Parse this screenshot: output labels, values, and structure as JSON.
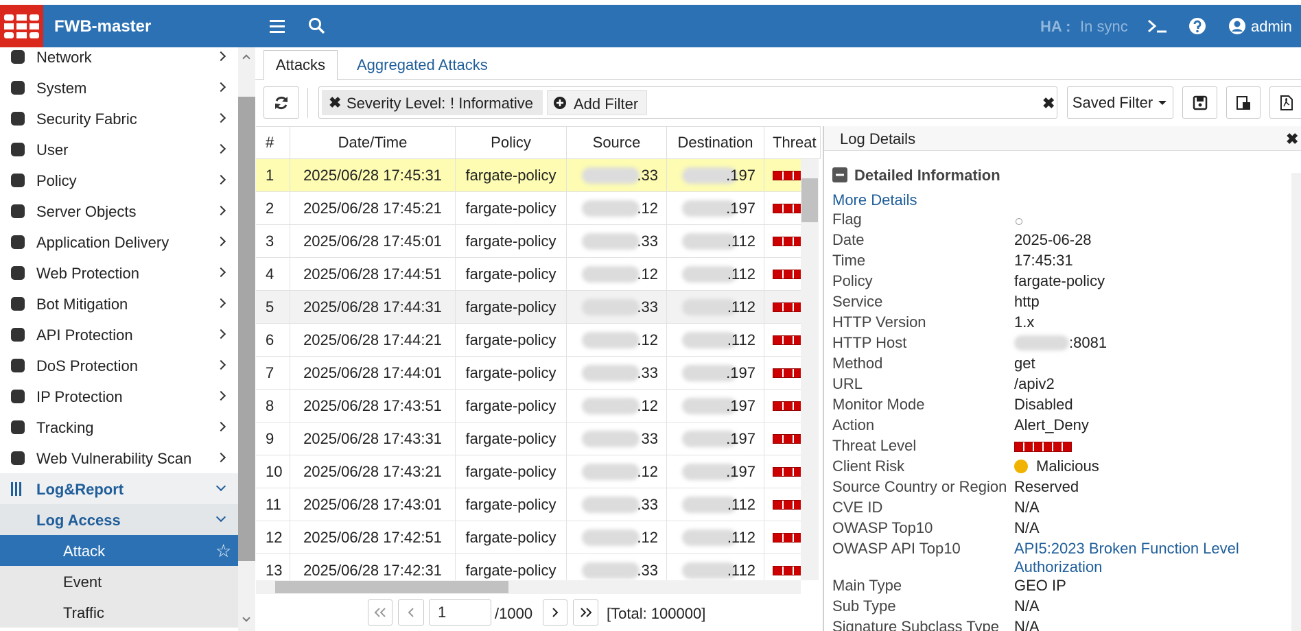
{
  "header": {
    "title": "FWB-master",
    "ha_label": "HA :",
    "ha_status": "In sync",
    "user": "admin"
  },
  "sidebar": {
    "items": [
      "Network",
      "System",
      "Security Fabric",
      "User",
      "Policy",
      "Server Objects",
      "Application Delivery",
      "Web Protection",
      "Bot Mitigation",
      "API Protection",
      "DoS Protection",
      "IP Protection",
      "Tracking",
      "Web Vulnerability Scan"
    ],
    "log_report": "Log&Report",
    "log_access": "Log Access",
    "sub_items": [
      "Attack",
      "Event",
      "Traffic"
    ]
  },
  "tabs": [
    "Attacks",
    "Aggregated Attacks"
  ],
  "filter": {
    "chip_label": "Severity Level:",
    "chip_value": "! Informative",
    "add": "Add Filter",
    "saved": "Saved Filter"
  },
  "table": {
    "columns": [
      "#",
      "Date/Time",
      "Policy",
      "Source",
      "Destination",
      "Threat"
    ],
    "rows": [
      [
        1,
        "2025/06/28 17:45:31",
        "fargate-policy",
        ".33",
        ".197"
      ],
      [
        2,
        "2025/06/28 17:45:21",
        "fargate-policy",
        ".12",
        ".197"
      ],
      [
        3,
        "2025/06/28 17:45:01",
        "fargate-policy",
        ".33",
        ".112"
      ],
      [
        4,
        "2025/06/28 17:44:51",
        "fargate-policy",
        ".12",
        ".112"
      ],
      [
        5,
        "2025/06/28 17:44:31",
        "fargate-policy",
        ".33",
        ".112"
      ],
      [
        6,
        "2025/06/28 17:44:21",
        "fargate-policy",
        ".12",
        ".112"
      ],
      [
        7,
        "2025/06/28 17:44:01",
        "fargate-policy",
        ".33",
        ".197"
      ],
      [
        8,
        "2025/06/28 17:43:51",
        "fargate-policy",
        ".12",
        ".197"
      ],
      [
        9,
        "2025/06/28 17:43:31",
        "fargate-policy",
        "33",
        ".197"
      ],
      [
        10,
        "2025/06/28 17:43:21",
        "fargate-policy",
        ".12",
        ".197"
      ],
      [
        11,
        "2025/06/28 17:43:01",
        "fargate-policy",
        ".33",
        ".112"
      ],
      [
        12,
        "2025/06/28 17:42:51",
        "fargate-policy",
        ".12",
        ".112"
      ],
      [
        13,
        "2025/06/28 17:42:31",
        "fargate-policy",
        ".33",
        ".112"
      ]
    ]
  },
  "pagination": {
    "page": "1",
    "pages": "/1000",
    "total": "[Total: 100000]"
  },
  "details": {
    "title": "Log Details",
    "section": "Detailed Information",
    "more": "More Details",
    "fields": [
      {
        "label": "Flag"
      },
      {
        "label": "Date",
        "value": "2025-06-28"
      },
      {
        "label": "Time",
        "value": "17:45:31"
      },
      {
        "label": "Policy",
        "value": "fargate-policy"
      },
      {
        "label": "Service",
        "value": "http"
      },
      {
        "label": "HTTP Version",
        "value": "1.x"
      },
      {
        "label": "HTTP Host",
        "value": ":8081"
      },
      {
        "label": "Method",
        "value": "get"
      },
      {
        "label": "URL",
        "value": "/apiv2"
      },
      {
        "label": "Monitor Mode",
        "value": "Disabled"
      },
      {
        "label": "Action",
        "value": "Alert_Deny"
      },
      {
        "label": "Threat Level"
      },
      {
        "label": "Client Risk",
        "value": "Malicious"
      },
      {
        "label": "Source Country or Region",
        "value": "Reserved"
      },
      {
        "label": "CVE ID",
        "value": "N/A"
      },
      {
        "label": "OWASP Top10",
        "value": "N/A"
      },
      {
        "label": "OWASP API Top10",
        "value": "API5:2023 Broken Function Level Authorization"
      },
      {
        "label": "Main Type",
        "value": "GEO IP"
      },
      {
        "label": "Sub Type",
        "value": "N/A"
      },
      {
        "label": "Signature Subclass Type",
        "value": "N/A"
      }
    ]
  }
}
